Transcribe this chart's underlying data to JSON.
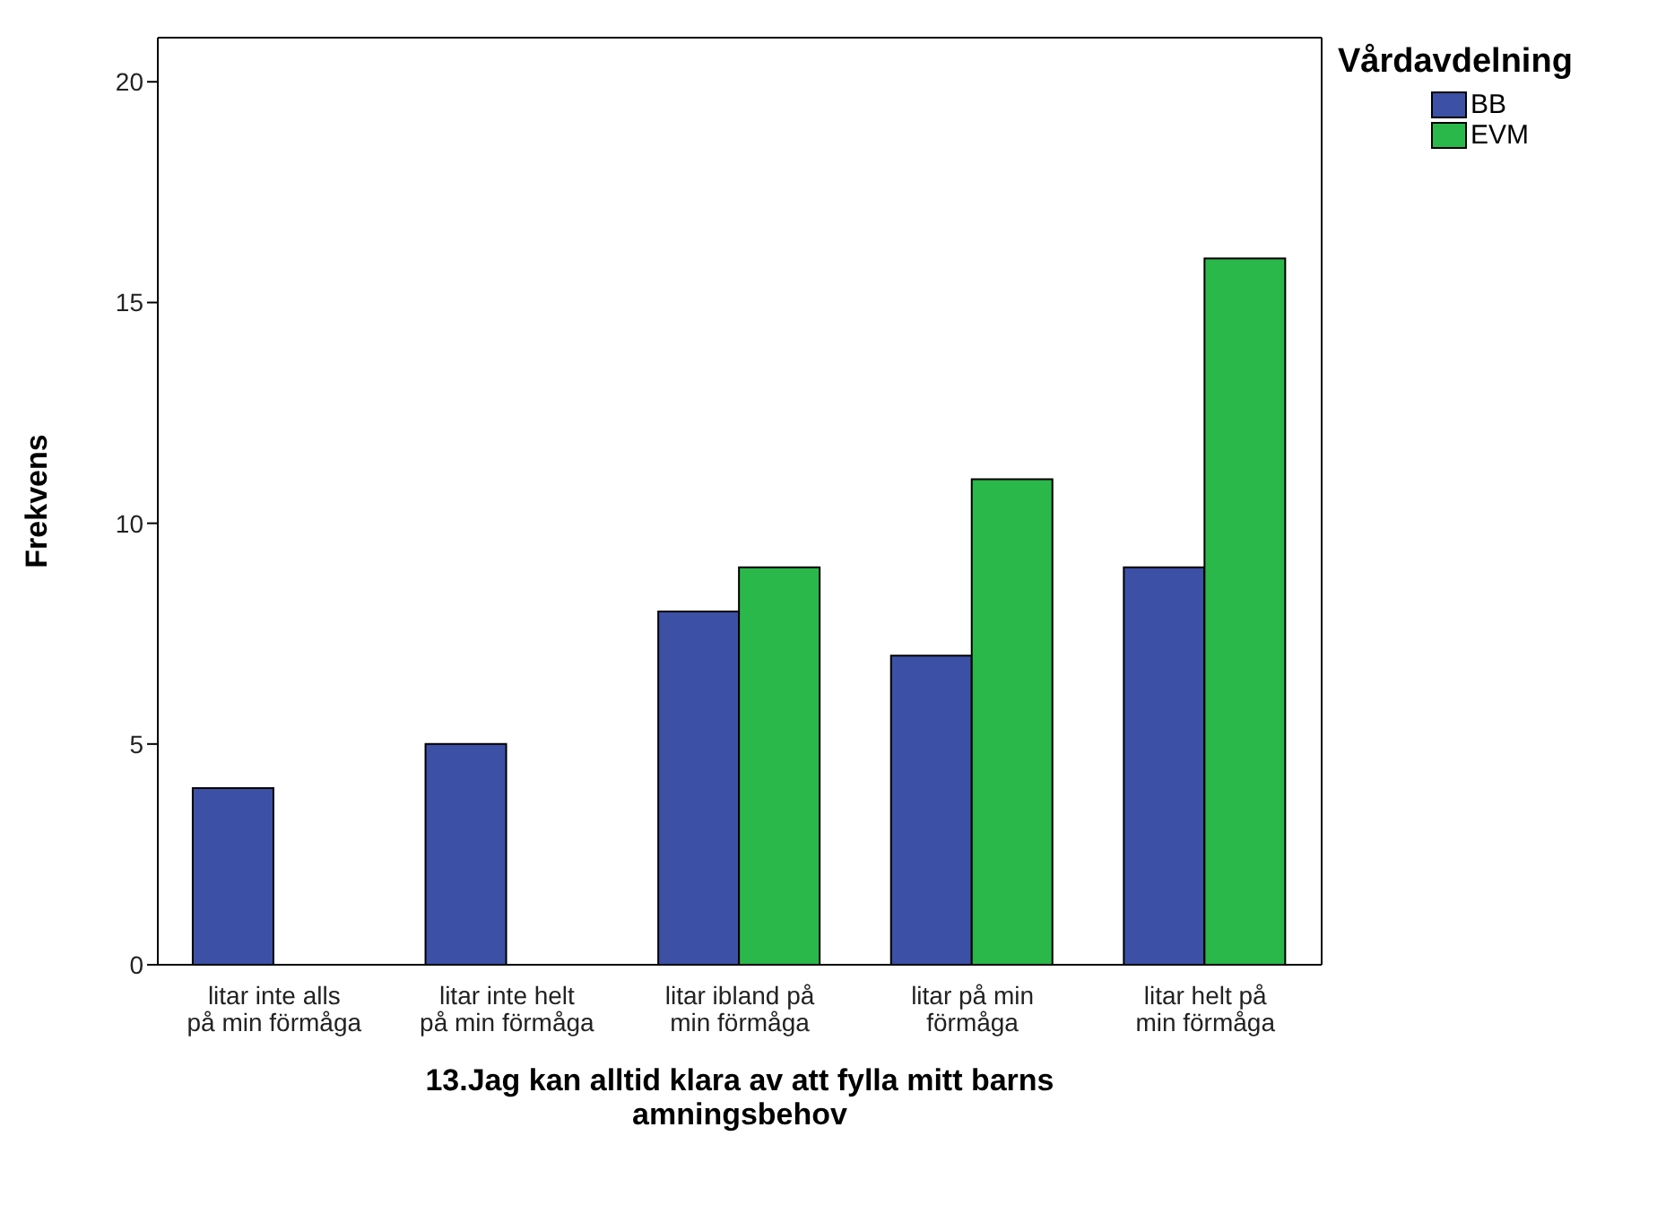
{
  "chart_data": {
    "type": "bar",
    "xlabel": "13.Jag kan alltid klara av att fylla mitt barns amningsbehov",
    "ylabel": "Frekvens",
    "legend_title": "Vårdavdelning",
    "categories": [
      "litar inte alls på min förmåga",
      "litar inte helt på min förmåga",
      "litar ibland på min förmåga",
      "litar på min förmåga",
      "litar helt på min förmåga"
    ],
    "series": [
      {
        "name": "BB",
        "color": "#3c50a6",
        "values": [
          4,
          5,
          8,
          7,
          9
        ]
      },
      {
        "name": "EVM",
        "color": "#2bb84a",
        "values": [
          0,
          0,
          9,
          11,
          16
        ]
      }
    ],
    "ylim": [
      0,
      21
    ],
    "yticks": [
      0,
      5,
      10,
      15,
      20
    ],
    "grid": false,
    "legend": "top right"
  }
}
